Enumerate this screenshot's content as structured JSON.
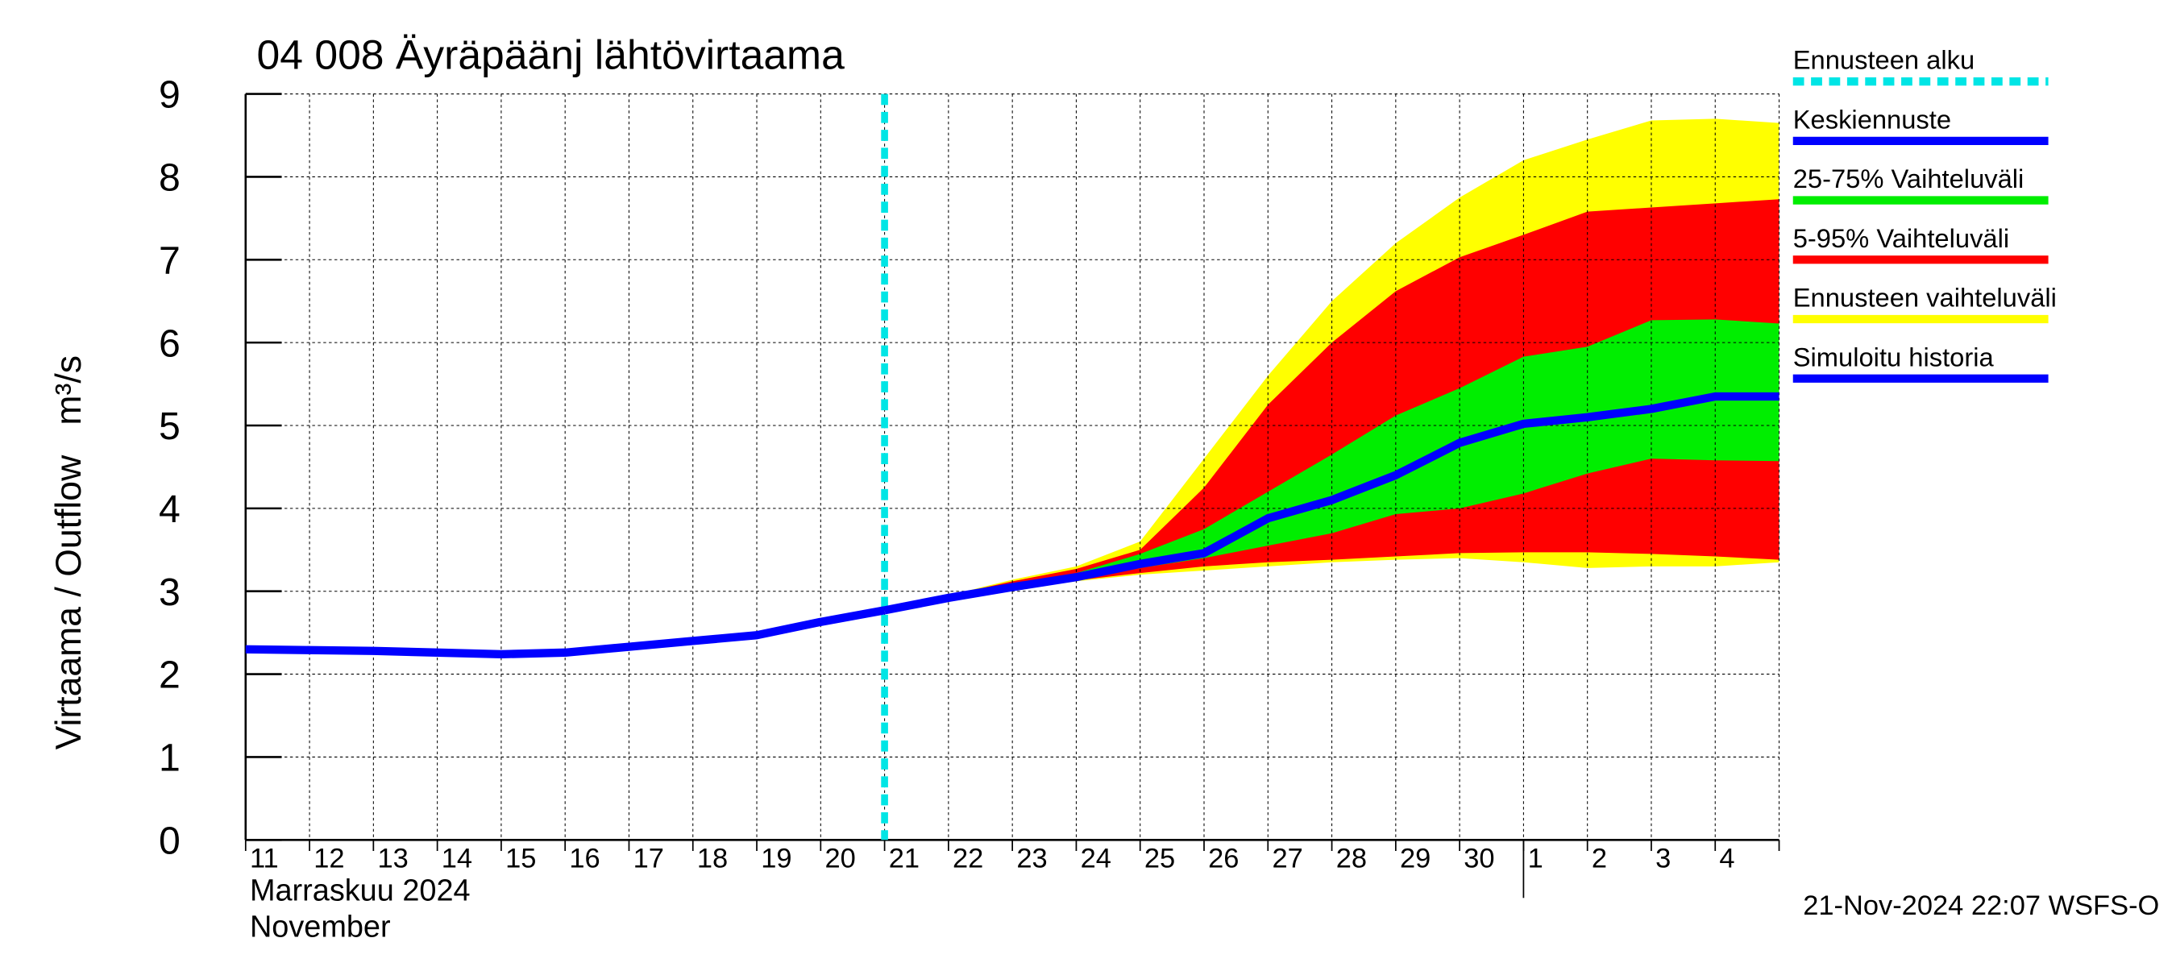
{
  "chart_data": {
    "type": "line",
    "title": "04 008 Äyräpäänj lähtövirtaama",
    "y_label": "Virtaama / Outflow   m³/s",
    "month_label": "Marraskuu 2024",
    "month_label_en": "November",
    "timestamp": "21-Nov-2024 22:07 WSFS-O",
    "categories": [
      "11",
      "12",
      "13",
      "14",
      "15",
      "16",
      "17",
      "18",
      "19",
      "20",
      "21",
      "22",
      "23",
      "24",
      "25",
      "26",
      "27",
      "28",
      "29",
      "30",
      "1",
      "2",
      "3",
      "4",
      null
    ],
    "forecast_start": {
      "name": "Ennusteen alku",
      "color": "#00e5e5",
      "index": 10
    },
    "series": [
      {
        "name": "Keskiennuste",
        "color": "#0000ff",
        "values": [
          null,
          null,
          null,
          null,
          null,
          null,
          null,
          null,
          null,
          null,
          2.77,
          2.92,
          3.05,
          3.17,
          3.33,
          3.46,
          3.88,
          4.1,
          4.4,
          4.79,
          5.02,
          5.1,
          5.2,
          5.35,
          5.35
        ]
      },
      {
        "name": "Simuloitu historia",
        "color": "#0000ff",
        "values": [
          2.3,
          2.29,
          2.28,
          2.26,
          2.24,
          2.26,
          2.33,
          2.4,
          2.47,
          2.63,
          2.77,
          null,
          null,
          null,
          null,
          null,
          null,
          null,
          null,
          null,
          null,
          null,
          null,
          null,
          null
        ]
      }
    ],
    "bands": [
      {
        "name": "25-75% Vaihteluväli",
        "color": "#00ee00",
        "lower": [
          null,
          null,
          null,
          null,
          null,
          null,
          null,
          null,
          null,
          null,
          2.77,
          2.91,
          3.04,
          3.15,
          3.28,
          3.4,
          3.55,
          3.7,
          3.93,
          4.0,
          4.18,
          4.42,
          4.6,
          4.58,
          4.57
        ],
        "upper": [
          null,
          null,
          null,
          null,
          null,
          null,
          null,
          null,
          null,
          null,
          2.77,
          2.93,
          3.07,
          3.22,
          3.45,
          3.75,
          4.2,
          4.65,
          5.12,
          5.45,
          5.83,
          5.95,
          6.27,
          6.28,
          6.23
        ]
      },
      {
        "name": "5-95% Vaihteluväli",
        "color": "#ff0000",
        "lower": [
          null,
          null,
          null,
          null,
          null,
          null,
          null,
          null,
          null,
          null,
          2.77,
          2.9,
          3.03,
          3.13,
          3.22,
          3.3,
          3.35,
          3.38,
          3.42,
          3.46,
          3.47,
          3.47,
          3.45,
          3.42,
          3.38
        ],
        "upper": [
          null,
          null,
          null,
          null,
          null,
          null,
          null,
          null,
          null,
          null,
          2.77,
          2.95,
          3.12,
          3.27,
          3.5,
          4.25,
          5.25,
          6.0,
          6.62,
          7.03,
          7.3,
          7.58,
          7.63,
          7.68,
          7.73
        ]
      },
      {
        "name": "Ennusteen vaihteluväli",
        "color": "#ffff00",
        "lower": [
          null,
          null,
          null,
          null,
          null,
          null,
          null,
          null,
          null,
          null,
          2.77,
          2.9,
          3.02,
          3.12,
          3.2,
          3.25,
          3.3,
          3.35,
          3.38,
          3.4,
          3.35,
          3.28,
          3.3,
          3.3,
          3.35
        ],
        "upper": [
          null,
          null,
          null,
          null,
          null,
          null,
          null,
          null,
          null,
          null,
          2.77,
          2.95,
          3.14,
          3.3,
          3.6,
          4.6,
          5.6,
          6.5,
          7.2,
          7.75,
          8.2,
          8.45,
          8.68,
          8.7,
          8.65
        ]
      }
    ],
    "ylim": [
      0,
      9
    ],
    "yticks": [
      0,
      1,
      2,
      3,
      4,
      5,
      6,
      7,
      8,
      9
    ],
    "grid": true
  }
}
